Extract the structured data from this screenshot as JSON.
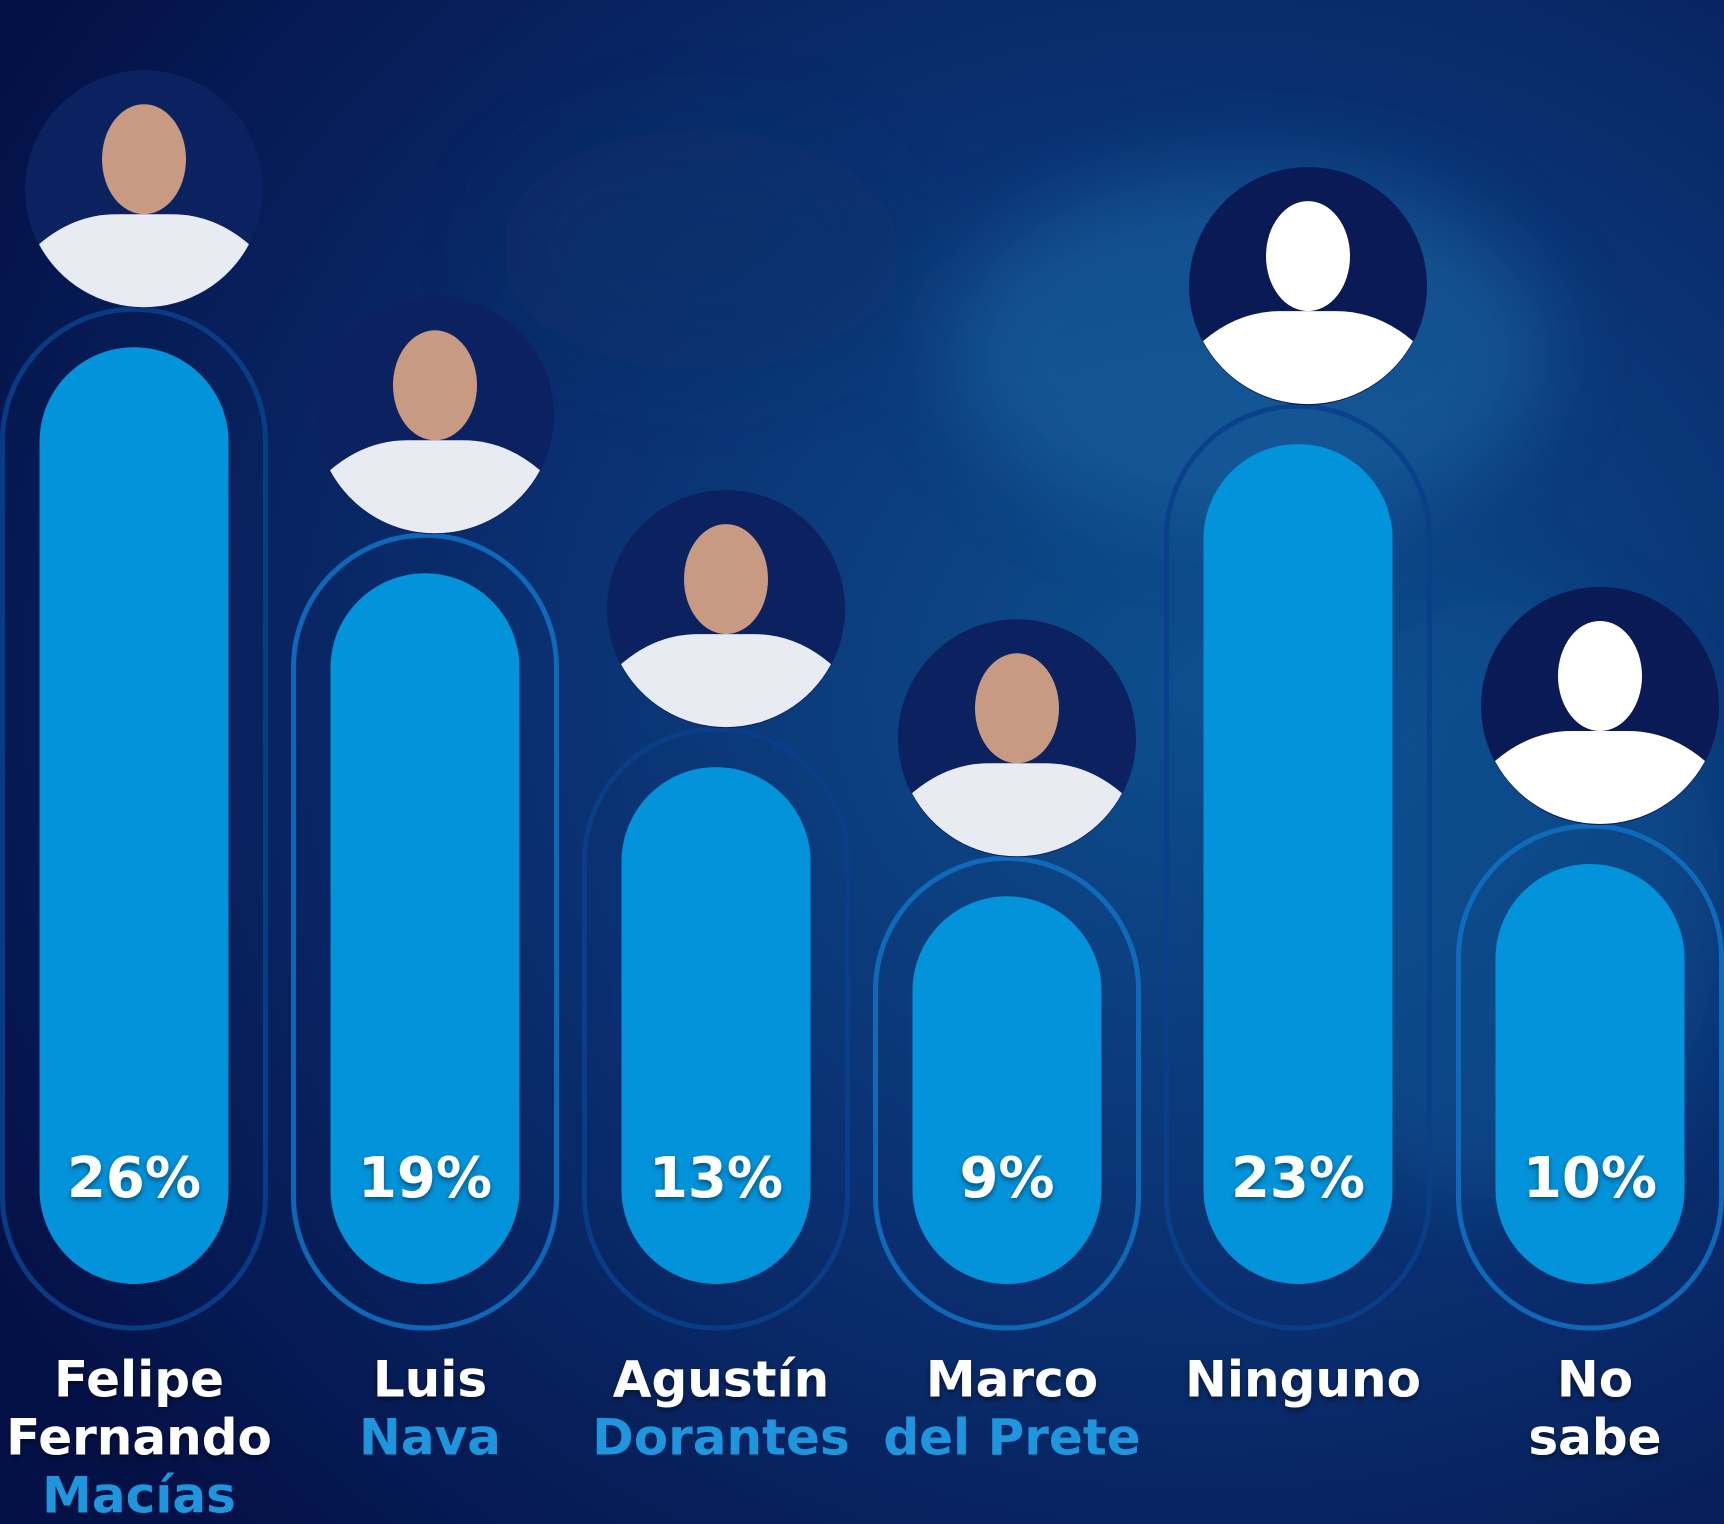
{
  "chart_data": {
    "type": "bar",
    "categories": [
      [
        "Felipe",
        "Fernando"
      ],
      [
        "Luis"
      ],
      [
        "Agustín"
      ],
      [
        "Marco"
      ],
      [
        "Ninguno"
      ],
      [
        "No",
        "sabe"
      ]
    ],
    "surnames": [
      "Macías",
      "Nava",
      "Dorantes",
      "del Prete",
      null,
      null
    ],
    "values": [
      26,
      19,
      13,
      9,
      23,
      10
    ],
    "value_labels": [
      "26%",
      "19%",
      "13%",
      "9%",
      "23%",
      "10%"
    ],
    "color": "#0393db",
    "surname_color": "#1f95de"
  }
}
